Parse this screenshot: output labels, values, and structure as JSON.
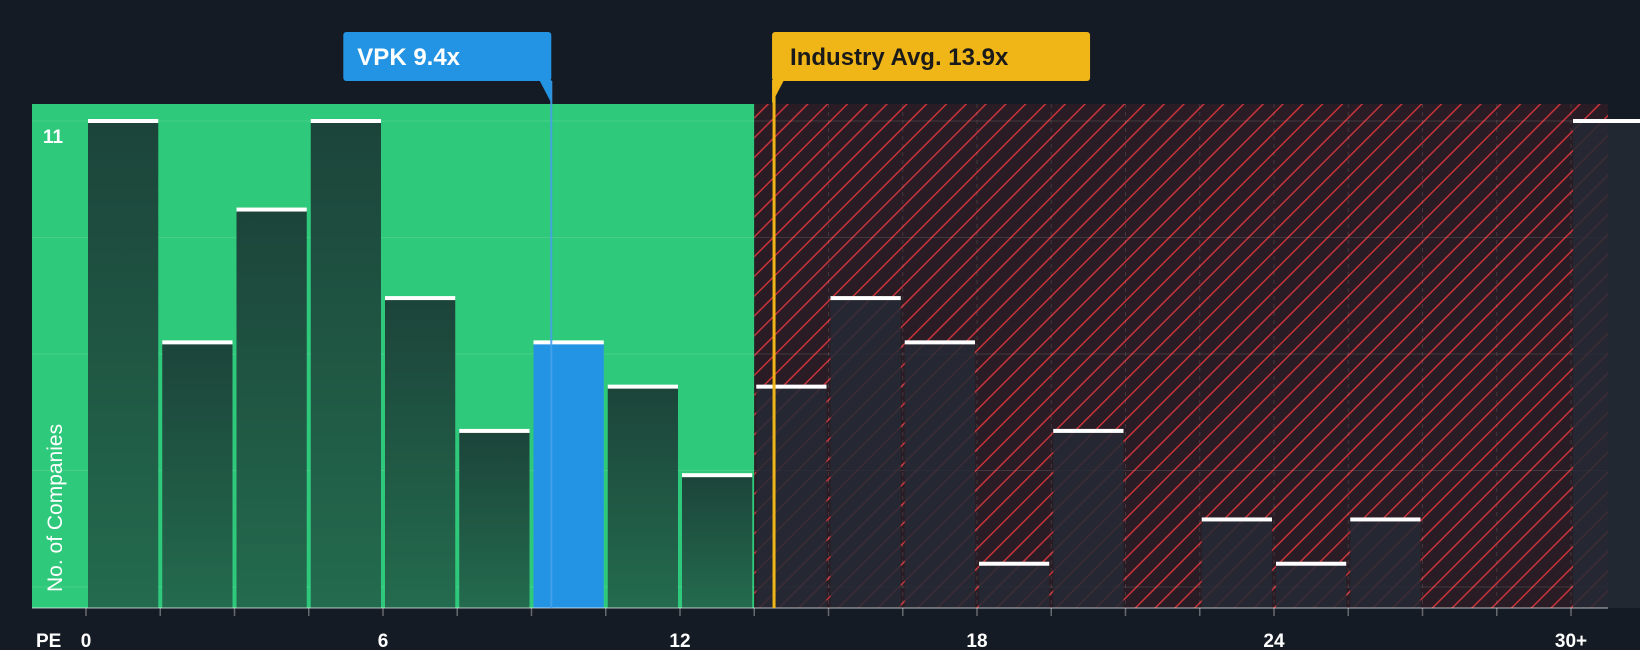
{
  "chart_data": {
    "type": "bar",
    "title": "",
    "xlabel": "PE",
    "ylabel": "No. of Companies",
    "ylim": [
      0,
      11
    ],
    "y_ticks": [
      {
        "value": 11,
        "label": "11"
      }
    ],
    "x_ticks": [
      {
        "value": 0,
        "label": "0"
      },
      {
        "value": 6,
        "label": "6"
      },
      {
        "value": 12,
        "label": "12"
      },
      {
        "value": 18,
        "label": "18"
      },
      {
        "value": 24,
        "label": "24"
      },
      {
        "value": 30,
        "label": "30+"
      }
    ],
    "bin_width": 1.5,
    "bars": [
      {
        "x": 0.75,
        "value": 11,
        "region": "fair"
      },
      {
        "x": 2.25,
        "value": 6,
        "region": "fair"
      },
      {
        "x": 3.75,
        "value": 9,
        "region": "fair"
      },
      {
        "x": 5.25,
        "value": 11,
        "region": "fair"
      },
      {
        "x": 6.75,
        "value": 7,
        "region": "fair"
      },
      {
        "x": 8.25,
        "value": 4,
        "region": "fair"
      },
      {
        "x": 9.75,
        "value": 6,
        "region": "fair",
        "highlight": true
      },
      {
        "x": 11.25,
        "value": 5,
        "region": "fair"
      },
      {
        "x": 12.75,
        "value": 3,
        "region": "fair"
      },
      {
        "x": 14.25,
        "value": 5,
        "region": "over"
      },
      {
        "x": 15.75,
        "value": 7,
        "region": "over"
      },
      {
        "x": 17.25,
        "value": 6,
        "region": "over"
      },
      {
        "x": 18.75,
        "value": 1,
        "region": "over"
      },
      {
        "x": 20.25,
        "value": 4,
        "region": "over"
      },
      {
        "x": 21.75,
        "value": 0,
        "region": "over"
      },
      {
        "x": 23.25,
        "value": 2,
        "region": "over"
      },
      {
        "x": 24.75,
        "value": 1,
        "region": "over"
      },
      {
        "x": 26.25,
        "value": 2,
        "region": "over"
      },
      {
        "x": 27.75,
        "value": 0,
        "region": "over"
      },
      {
        "x": 29.25,
        "value": 0,
        "region": "over"
      },
      {
        "x": 30.75,
        "value": 11,
        "region": "over"
      }
    ],
    "fair_region_end": 13.5,
    "annotations": [
      {
        "label": "VPK 9.4x",
        "value": 9.4,
        "color": "#2394e3"
      },
      {
        "label": "Industry Avg. 13.9x",
        "value": 13.9,
        "color": "#f0b517"
      }
    ],
    "colors": {
      "background": "#151b24",
      "fair_zone": "#2ec97a",
      "fair_bar": "#1f4a3c",
      "highlight_bar": "#2394e3",
      "over_zone": "#2a1c24",
      "hatch": "#c7333a",
      "over_bar": "#242a35"
    }
  }
}
